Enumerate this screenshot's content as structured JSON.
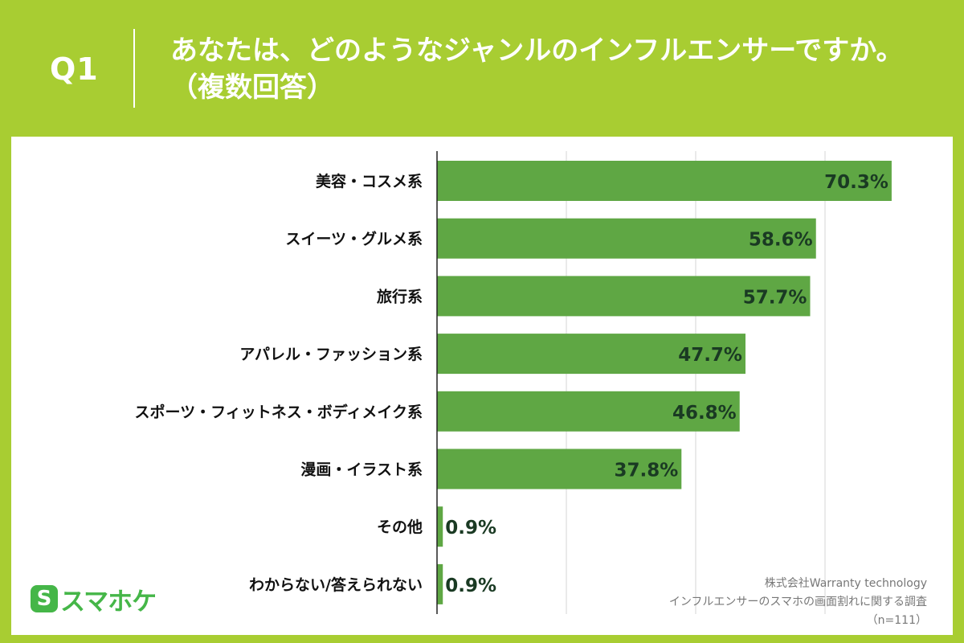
{
  "header": {
    "question_number": "Q1",
    "question_text": "あなたは、どのようなジャンルのインフルエンサーですか。（複数回答）"
  },
  "logo": {
    "mark": "S",
    "text": "スマホケ"
  },
  "footer": {
    "company": "株式会社Warranty technology",
    "survey_title": "インフルエンサーのスマホの画面割れに関する調査",
    "sample_size": "（n=111）"
  },
  "colors": {
    "background": "#a8cd32",
    "bar": "#5fa744",
    "value_label": "#1a3a23",
    "category_label": "#111111",
    "gridline": "#d6d6d6",
    "axis": "#222222",
    "logo": "#45b648"
  },
  "chart_data": {
    "type": "bar",
    "orientation": "horizontal",
    "title": "",
    "xlabel": "",
    "ylabel": "",
    "unit": "%",
    "xlim": [
      0,
      80
    ],
    "grid": true,
    "gridline_values": [
      20,
      40,
      60,
      80
    ],
    "categories": [
      "美容・コスメ系",
      "スイーツ・グルメ系",
      "旅行系",
      "アパレル・ファッション系",
      "スポーツ・フィットネス・ボディメイク系",
      "漫画・イラスト系",
      "その他",
      "わからない/答えられない"
    ],
    "values": [
      70.3,
      58.6,
      57.7,
      47.7,
      46.8,
      37.8,
      0.9,
      0.9
    ],
    "value_labels": [
      "70.3%",
      "58.6%",
      "57.7%",
      "47.7%",
      "46.8%",
      "37.8%",
      "0.9%",
      "0.9%"
    ]
  }
}
